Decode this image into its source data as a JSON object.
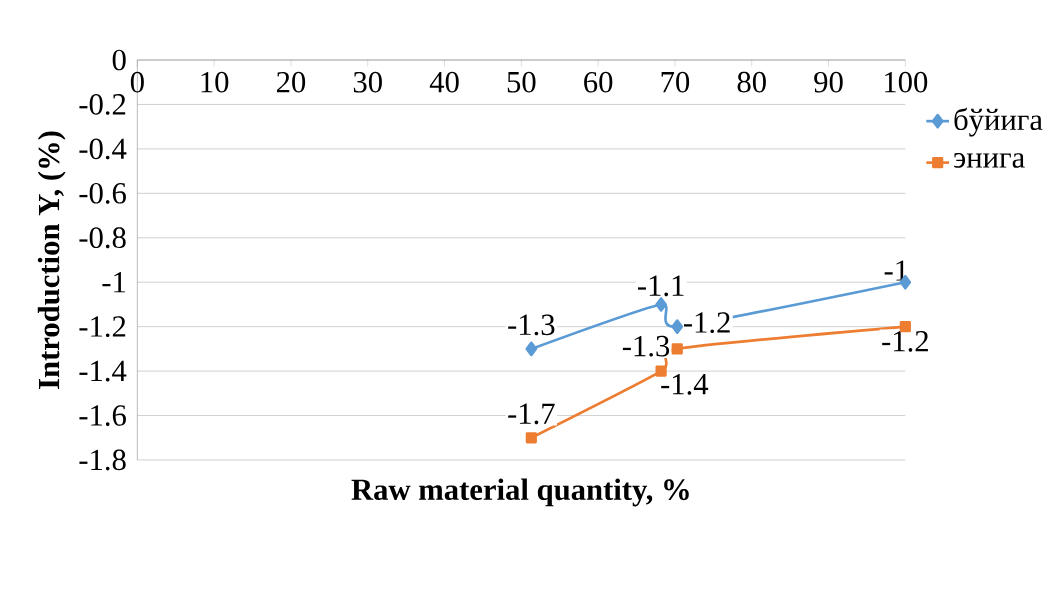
{
  "chart_data": {
    "type": "line",
    "xlabel": "Raw material quantity, %",
    "ylabel": "Introduction Y, (%)",
    "xlim": [
      0,
      100
    ],
    "xticks": [
      0,
      10,
      20,
      30,
      40,
      50,
      60,
      70,
      80,
      90,
      100
    ],
    "ylim": [
      -1.8,
      0
    ],
    "yticks": [
      -1.8,
      -1.6,
      -1.4,
      -1.2,
      -1,
      -0.8,
      -0.6,
      -0.4,
      -0.2,
      0
    ],
    "grid": "y",
    "legend": "right",
    "data_labels": true,
    "series": [
      {
        "name": "бўйига",
        "color": "#5b9bd5",
        "marker": "diamond",
        "x": [
          51.3,
          68.2,
          70.3,
          100
        ],
        "values": [
          -1.3,
          -1.1,
          -1.2,
          -1
        ]
      },
      {
        "name": "энига",
        "color": "#ed7d31",
        "marker": "square",
        "x": [
          51.3,
          68.2,
          70.3,
          100
        ],
        "values": [
          -1.7,
          -1.4,
          -1.3,
          -1.2
        ]
      }
    ]
  }
}
